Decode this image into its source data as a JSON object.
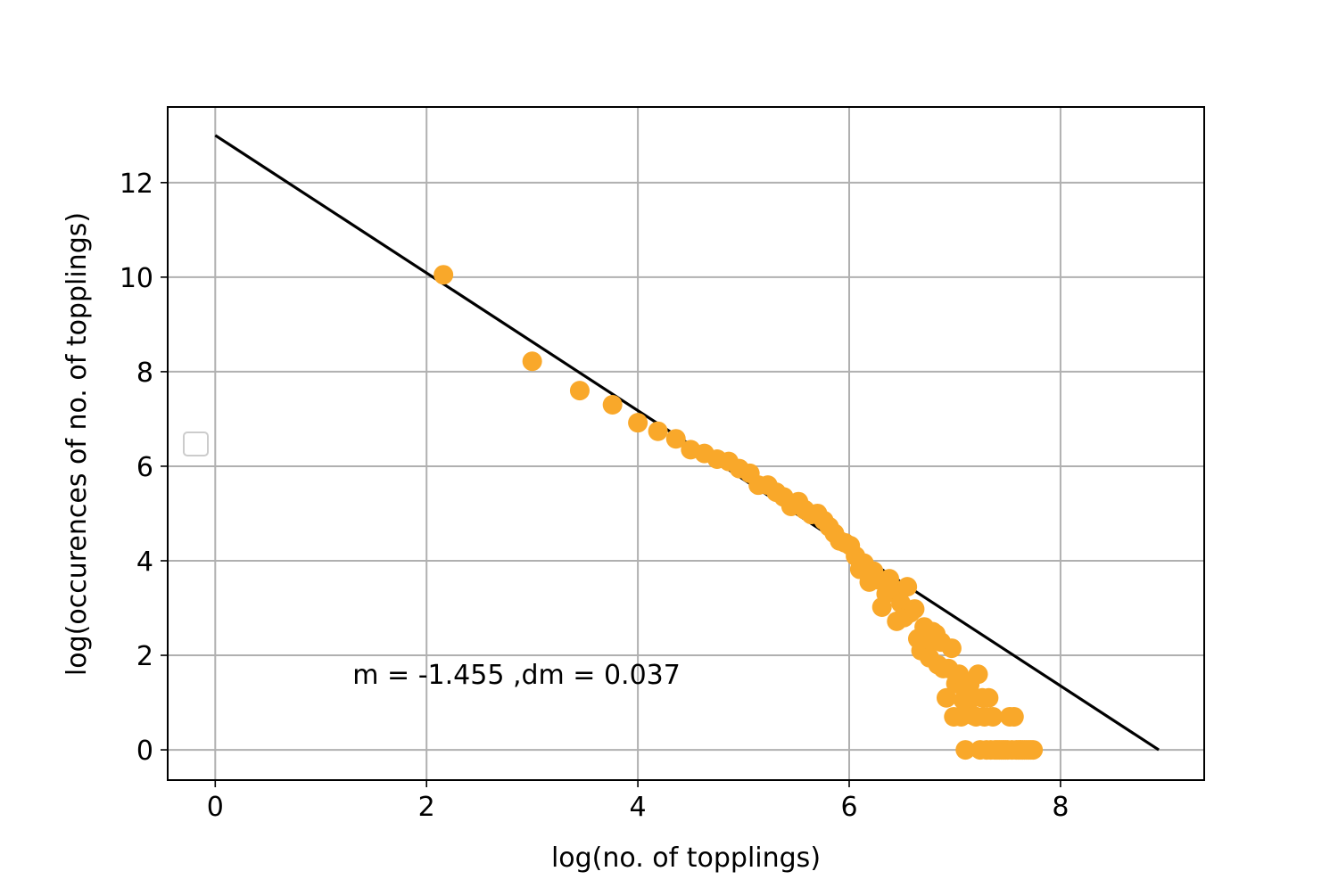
{
  "chart_data": {
    "type": "scatter",
    "title": "",
    "xlabel": "log(no. of topplings)",
    "ylabel": "log(occurences of no. of topplings)",
    "xlim": [
      -0.45,
      9.36
    ],
    "ylim": [
      -0.64,
      13.6
    ],
    "grid": true,
    "x_ticks": [
      0,
      2,
      4,
      6,
      8
    ],
    "y_ticks": [
      0,
      2,
      4,
      6,
      8,
      10,
      12
    ],
    "legend": {
      "placement": "center-left",
      "entries": []
    },
    "annotation": {
      "text": "m = -1.455 ,dm = 0.037",
      "x": 1.3,
      "y": 1.4
    },
    "colors": {
      "points": "#f9a82a",
      "fit_line": "#000000",
      "grid": "#b0b0b0",
      "legend_border": "#cccccc"
    },
    "fit_line": {
      "x": [
        0,
        8.93
      ],
      "y": [
        13.0,
        0.0
      ]
    },
    "series": [
      {
        "x": [
          2.16,
          3.0,
          3.45,
          3.76,
          4.0,
          4.19,
          4.36,
          4.5,
          4.63,
          4.75,
          4.86,
          4.96,
          5.06,
          5.14,
          5.23,
          5.31,
          5.38,
          5.45,
          5.52,
          5.58,
          5.64,
          5.7,
          5.76,
          5.81,
          5.86,
          5.91,
          5.96,
          6.01,
          6.06,
          6.1,
          6.14,
          6.19,
          6.23,
          6.27,
          6.31,
          6.35,
          6.38,
          6.42,
          6.45,
          6.49,
          6.52,
          6.55,
          6.58,
          6.62,
          6.65,
          6.68,
          6.71,
          6.73,
          6.76,
          6.79,
          6.82,
          6.84,
          6.87,
          6.89,
          6.92,
          6.94,
          6.97,
          6.99,
          7.01,
          7.04,
          7.06,
          7.08,
          7.1,
          7.12,
          7.14,
          7.16,
          7.18,
          7.2,
          7.22,
          7.24,
          7.26,
          7.28,
          7.3,
          7.32,
          7.34,
          7.36,
          7.38,
          7.4,
          7.42,
          7.44,
          7.46,
          7.48,
          7.5,
          7.52,
          7.54,
          7.56,
          7.58,
          7.6,
          7.62,
          7.64,
          7.66,
          7.68,
          7.7,
          7.72,
          7.74
        ],
        "y": [
          10.05,
          8.22,
          7.6,
          7.3,
          6.92,
          6.74,
          6.58,
          6.35,
          6.27,
          6.15,
          6.1,
          5.95,
          5.85,
          5.6,
          5.6,
          5.45,
          5.35,
          5.15,
          5.25,
          5.08,
          4.98,
          5.0,
          4.85,
          4.72,
          4.58,
          4.42,
          4.38,
          4.32,
          4.1,
          3.82,
          3.95,
          3.55,
          3.78,
          3.6,
          3.02,
          3.3,
          3.62,
          3.4,
          2.72,
          3.1,
          2.8,
          3.45,
          2.9,
          2.98,
          2.35,
          2.1,
          2.6,
          2.2,
          1.95,
          2.5,
          2.45,
          1.8,
          2.28,
          1.72,
          1.1,
          1.72,
          2.15,
          0.7,
          1.4,
          1.6,
          0.7,
          1.05,
          0.0,
          0.85,
          1.38,
          1.1,
          0.72,
          0.7,
          1.6,
          0.0,
          1.1,
          0.7,
          0.0,
          1.1,
          0.0,
          0.7,
          0.0,
          0.0,
          0.0,
          0.0,
          0.0,
          0.0,
          0.0,
          0.7,
          0.0,
          0.7,
          0.0,
          0.0,
          0.0,
          0.0,
          0.0,
          0.0,
          0.0,
          0.0,
          0.0
        ]
      }
    ]
  }
}
